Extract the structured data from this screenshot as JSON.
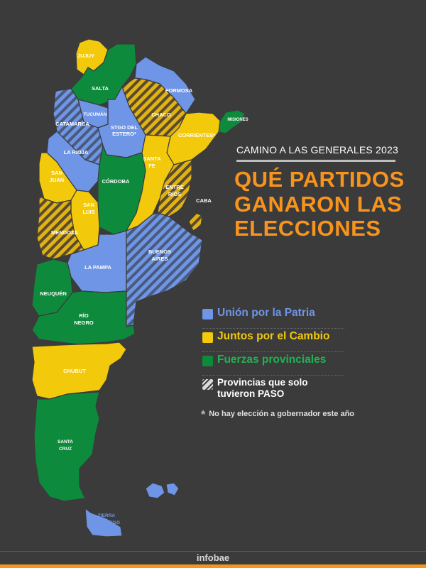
{
  "colors": {
    "union": "#6f95e6",
    "juntos": "#f3c90b",
    "fuerzas": "#0e8a3c",
    "hatch": "#5a4a2e",
    "background": "#3b3b3b",
    "accent": "#f7941d"
  },
  "header": {
    "subtitle": "CAMINO A LAS GENERALES 2023",
    "title_line1": "QUÉ PARTIDOS",
    "title_line2": "GANARON LAS",
    "title_line3": "ELECCIONES"
  },
  "legend": {
    "union": "Unión por la Patria",
    "juntos": "Juntos por el Cambio",
    "fuerzas": "Fuerzas provinciales",
    "paso_line1": "Provincias que solo",
    "paso_line2": "tuvieron PASO"
  },
  "note": {
    "star": "*",
    "text": "No hay elección a gobernador este año"
  },
  "provinces": {
    "jujuy": {
      "name": "JUJUY",
      "result": "juntos"
    },
    "salta": {
      "name": "SALTA",
      "result": "fuerzas"
    },
    "formosa": {
      "name": "FORMOSA",
      "result": "union"
    },
    "chaco": {
      "name": "CHACO",
      "result": "juntos-paso"
    },
    "misiones": {
      "name": "MISIONES",
      "result": "fuerzas"
    },
    "tucuman": {
      "name": "TUCUMÁN",
      "result": "union"
    },
    "catamarca": {
      "name": "CATAMARCA",
      "result": "union-paso"
    },
    "santiago": {
      "name1": "STGO DEL",
      "name2": "ESTERO*",
      "result": "union"
    },
    "corrientes": {
      "name": "CORRIENTES*",
      "result": "juntos"
    },
    "la_rioja": {
      "name": "LA RIOJA",
      "result": "union"
    },
    "san_juan": {
      "name1": "SAN",
      "name2": "JUAN",
      "result": "juntos"
    },
    "cordoba": {
      "name": "CÓRDOBA",
      "result": "fuerzas"
    },
    "santa_fe": {
      "name1": "SANTA",
      "name2": "FE",
      "result": "juntos"
    },
    "entre_rios": {
      "name1": "ENTRE",
      "name2": "RÍOS",
      "result": "juntos-paso"
    },
    "caba": {
      "name": "CABA",
      "result": "juntos-paso"
    },
    "san_luis": {
      "name1": "SAN",
      "name2": "LUIS",
      "result": "juntos"
    },
    "mendoza": {
      "name": "MENDOZA",
      "result": "juntos-paso"
    },
    "la_pampa": {
      "name": "LA PAMPA",
      "result": "union"
    },
    "buenos_aires": {
      "name1": "BUENOS",
      "name2": "AIRES",
      "result": "union-paso"
    },
    "neuquen": {
      "name": "NEUQUÉN",
      "result": "fuerzas"
    },
    "rio_negro": {
      "name1": "RÍO",
      "name2": "NEGRO",
      "result": "fuerzas"
    },
    "chubut": {
      "name": "CHUBUT",
      "result": "juntos"
    },
    "santa_cruz": {
      "name1": "SANTA",
      "name2": "CRUZ",
      "result": "fuerzas"
    },
    "tierra_del_fuego": {
      "name1": "TIERRA",
      "name2": "DEL FUEGO",
      "result": "union"
    }
  },
  "footer": {
    "brand": "infobae"
  }
}
